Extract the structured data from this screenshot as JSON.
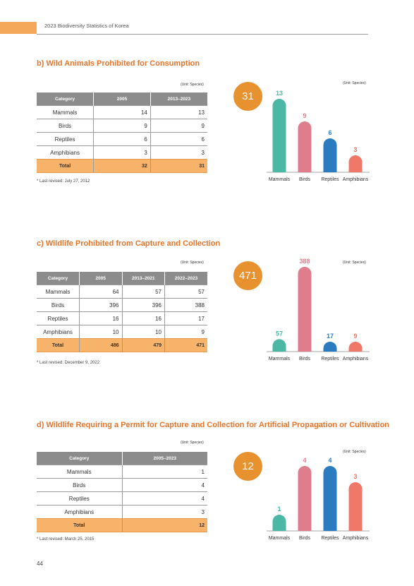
{
  "header": {
    "running_title": "2023 Biodiversity Statistics of Korea"
  },
  "page_number": "44",
  "colors": {
    "accent": "#e8742a",
    "circle": "#e8912f",
    "total_row": "#f8b36a",
    "mammals": "#4ab8a4",
    "birds": "#e07d8c",
    "reptiles": "#2b7bc1",
    "amphibians": "#f07868"
  },
  "sections": [
    {
      "title": "b) Wild Animals Prohibited for Consumption",
      "unit": "(Unit: Species)",
      "table": {
        "headers": [
          "Category",
          "2005",
          "2013–2023"
        ],
        "rows": [
          [
            "Mammals",
            "14",
            "13"
          ],
          [
            "Birds",
            "9",
            "9"
          ],
          [
            "Reptiles",
            "6",
            "6"
          ],
          [
            "Amphibians",
            "3",
            "3"
          ]
        ],
        "total": [
          "Total",
          "32",
          "31"
        ]
      },
      "note": "* Last revised: July 27, 2012",
      "badge": "31",
      "chart_unit": "(Unit: Species)"
    },
    {
      "title": "c) Wildlife Prohibited from Capture and Collection",
      "unit": "(Unit: Species)",
      "table": {
        "headers": [
          "Category",
          "2005",
          "2013–2021",
          "2022–2023"
        ],
        "rows": [
          [
            "Mammals",
            "64",
            "57",
            "57"
          ],
          [
            "Birds",
            "396",
            "396",
            "388"
          ],
          [
            "Reptiles",
            "16",
            "16",
            "17"
          ],
          [
            "Amphibians",
            "10",
            "10",
            "9"
          ]
        ],
        "total": [
          "Total",
          "486",
          "479",
          "471"
        ]
      },
      "note": "* Last revised: December 9, 2022",
      "badge": "471",
      "chart_unit": "(Unit: Species)"
    },
    {
      "title": "d) Wildlife Requiring a Permit for Capture and Collection for Artificial Propagation or Cultivation",
      "unit": "(Unit: Species)",
      "table": {
        "headers": [
          "Category",
          "2005–2023"
        ],
        "rows": [
          [
            "Mammals",
            "1"
          ],
          [
            "Birds",
            "4"
          ],
          [
            "Reptiles",
            "4"
          ],
          [
            "Amphibians",
            "3"
          ]
        ],
        "total": [
          "Total",
          "12"
        ]
      },
      "note": "* Last revised: March 25, 2015",
      "badge": "12",
      "chart_unit": "(Unit: Species)"
    }
  ],
  "chart_data": [
    {
      "type": "bar",
      "categories": [
        "Mammals",
        "Birds",
        "Reptiles",
        "Amphibians"
      ],
      "values": [
        13,
        9,
        6,
        3
      ]
    },
    {
      "type": "bar",
      "categories": [
        "Mammals",
        "Birds",
        "Reptiles",
        "Amphibians"
      ],
      "values": [
        57,
        388,
        17,
        9
      ]
    },
    {
      "type": "bar",
      "categories": [
        "Mammals",
        "Birds",
        "Reptiles",
        "Amphibians"
      ],
      "values": [
        1,
        4,
        4,
        3
      ]
    }
  ]
}
